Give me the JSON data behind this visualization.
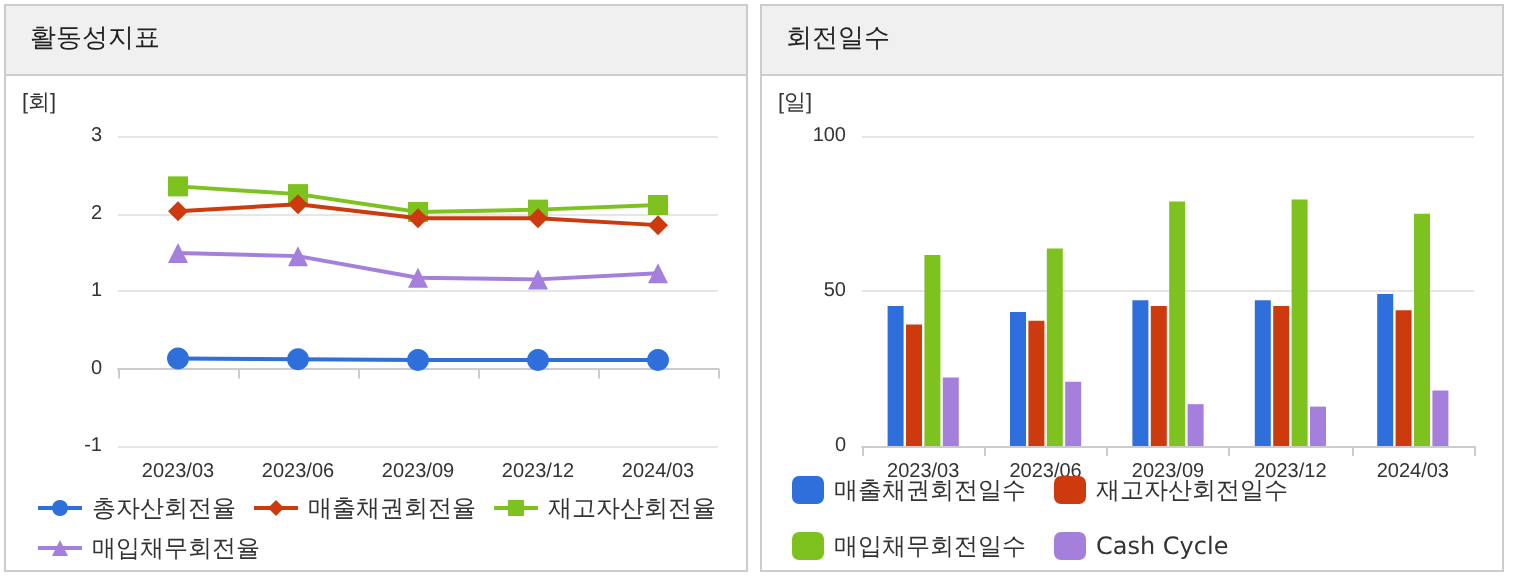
{
  "chart_data": [
    {
      "type": "line",
      "title": "활동성지표",
      "ylabel": "[회]",
      "categories": [
        "2023/03",
        "2023/06",
        "2023/09",
        "2023/12",
        "2024/03"
      ],
      "series": [
        {
          "name": "총자산회전율",
          "color": "#2e6fdc",
          "marker": "circle",
          "values": [
            0.13,
            0.12,
            0.11,
            0.11,
            0.11
          ]
        },
        {
          "name": "매출채권회전율",
          "color": "#cc3a0e",
          "marker": "diamond",
          "values": [
            2.03,
            2.12,
            1.94,
            1.94,
            1.85
          ]
        },
        {
          "name": "재고자산회전율",
          "color": "#7dc21e",
          "marker": "square",
          "values": [
            2.35,
            2.25,
            2.02,
            2.05,
            2.11
          ]
        },
        {
          "name": "매입채무회전율",
          "color": "#a57fdc",
          "marker": "triangle",
          "values": [
            1.49,
            1.45,
            1.17,
            1.15,
            1.23
          ]
        }
      ],
      "ylim": [
        -1,
        3
      ],
      "yticks": [
        -1,
        0,
        1,
        2,
        3
      ],
      "grid": "y",
      "legend": "bottom"
    },
    {
      "type": "bar",
      "title": "회전일수",
      "ylabel": "[일]",
      "categories": [
        "2023/03",
        "2023/06",
        "2023/09",
        "2023/12",
        "2024/03"
      ],
      "series": [
        {
          "name": "매출채권회전일수",
          "color": "#2e6fdc",
          "values": [
            45.2,
            43.2,
            47,
            47,
            49
          ]
        },
        {
          "name": "재고자산회전일수",
          "color": "#cc3a0e",
          "values": [
            39.2,
            40.4,
            45.2,
            45.2,
            43.8
          ]
        },
        {
          "name": "매입채무회전일수",
          "color": "#7dc21e",
          "values": [
            61.6,
            63.7,
            78.9,
            79.5,
            74.9
          ]
        },
        {
          "name": "Cash Cycle",
          "color": "#a57fdc",
          "values": [
            22.1,
            20.7,
            13.5,
            12.7,
            17.9
          ]
        }
      ],
      "ylim": [
        0,
        100
      ],
      "yticks": [
        0,
        50,
        100
      ],
      "grid": "y",
      "legend": "bottom"
    }
  ]
}
